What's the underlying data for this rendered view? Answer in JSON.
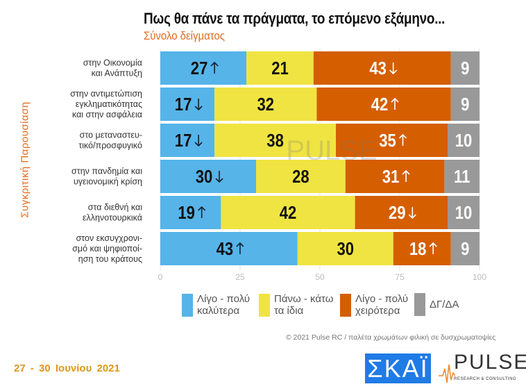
{
  "title": "Πως θα πάνε τα πράγματα, το επόμενο εξάμηνο...",
  "subtitle": "Σύνολο δείγματος",
  "side_label": "Συγκριτική  Παρουσίαση",
  "date": "27 - 30  Ιουνίου  2021",
  "copyright": "© 2021 Pulse RC   /   παλέτα χρωμάτων φιλική σε δυσχρωματοψίες",
  "logos": {
    "skai": "ΣΚΑΪ",
    "pulse": "PULSE",
    "pulse_sub": "RESEARCH & CONSULTING"
  },
  "chart_data": {
    "type": "bar",
    "orientation": "horizontal-stacked",
    "categories": [
      "στην Οικονομία\nκαι Ανάπτυξη",
      "στην αντιμετώπιση\nεγκληματικότητας\nκαι στην ασφάλεια",
      "στο μεταναστευ-\nτικό/προσφυγικό",
      "στην πανδημία και\nυγειονομική κρίση",
      "στα διεθνή και\nελληνοτουρκικά",
      "στον εκσυγχρονι-\nσμό και ψηφιοποί-\nηση του κράτους"
    ],
    "series": [
      {
        "name": "Λίγο - πολύ\nκαλύτερα",
        "color": "#56b4e9",
        "values": [
          27,
          17,
          17,
          30,
          19,
          43
        ],
        "trend": [
          "up",
          "down",
          "down",
          "down",
          "up",
          "up"
        ],
        "label_color": "#111"
      },
      {
        "name": "Πάνω - κάτω\nτα ίδια",
        "color": "#f0e442",
        "values": [
          21,
          32,
          38,
          28,
          42,
          30
        ],
        "trend": [
          null,
          null,
          null,
          null,
          null,
          null
        ],
        "label_color": "#111"
      },
      {
        "name": "Λίγο - πολύ\nχειρότερα",
        "color": "#d55e00",
        "values": [
          43,
          42,
          35,
          31,
          29,
          18
        ],
        "trend": [
          "down",
          "up",
          "up",
          "up",
          "down",
          "up"
        ],
        "label_color": "#fff"
      },
      {
        "name": "ΔΓ/ΔΑ",
        "color": "#999999",
        "values": [
          9,
          9,
          10,
          11,
          10,
          9
        ],
        "trend": [
          null,
          null,
          null,
          null,
          null,
          null
        ],
        "label_color": "#fff"
      }
    ],
    "xlim": [
      0,
      100
    ],
    "xticks": [
      0,
      25,
      50,
      75,
      100
    ],
    "grid": true,
    "legend_position": "bottom"
  }
}
